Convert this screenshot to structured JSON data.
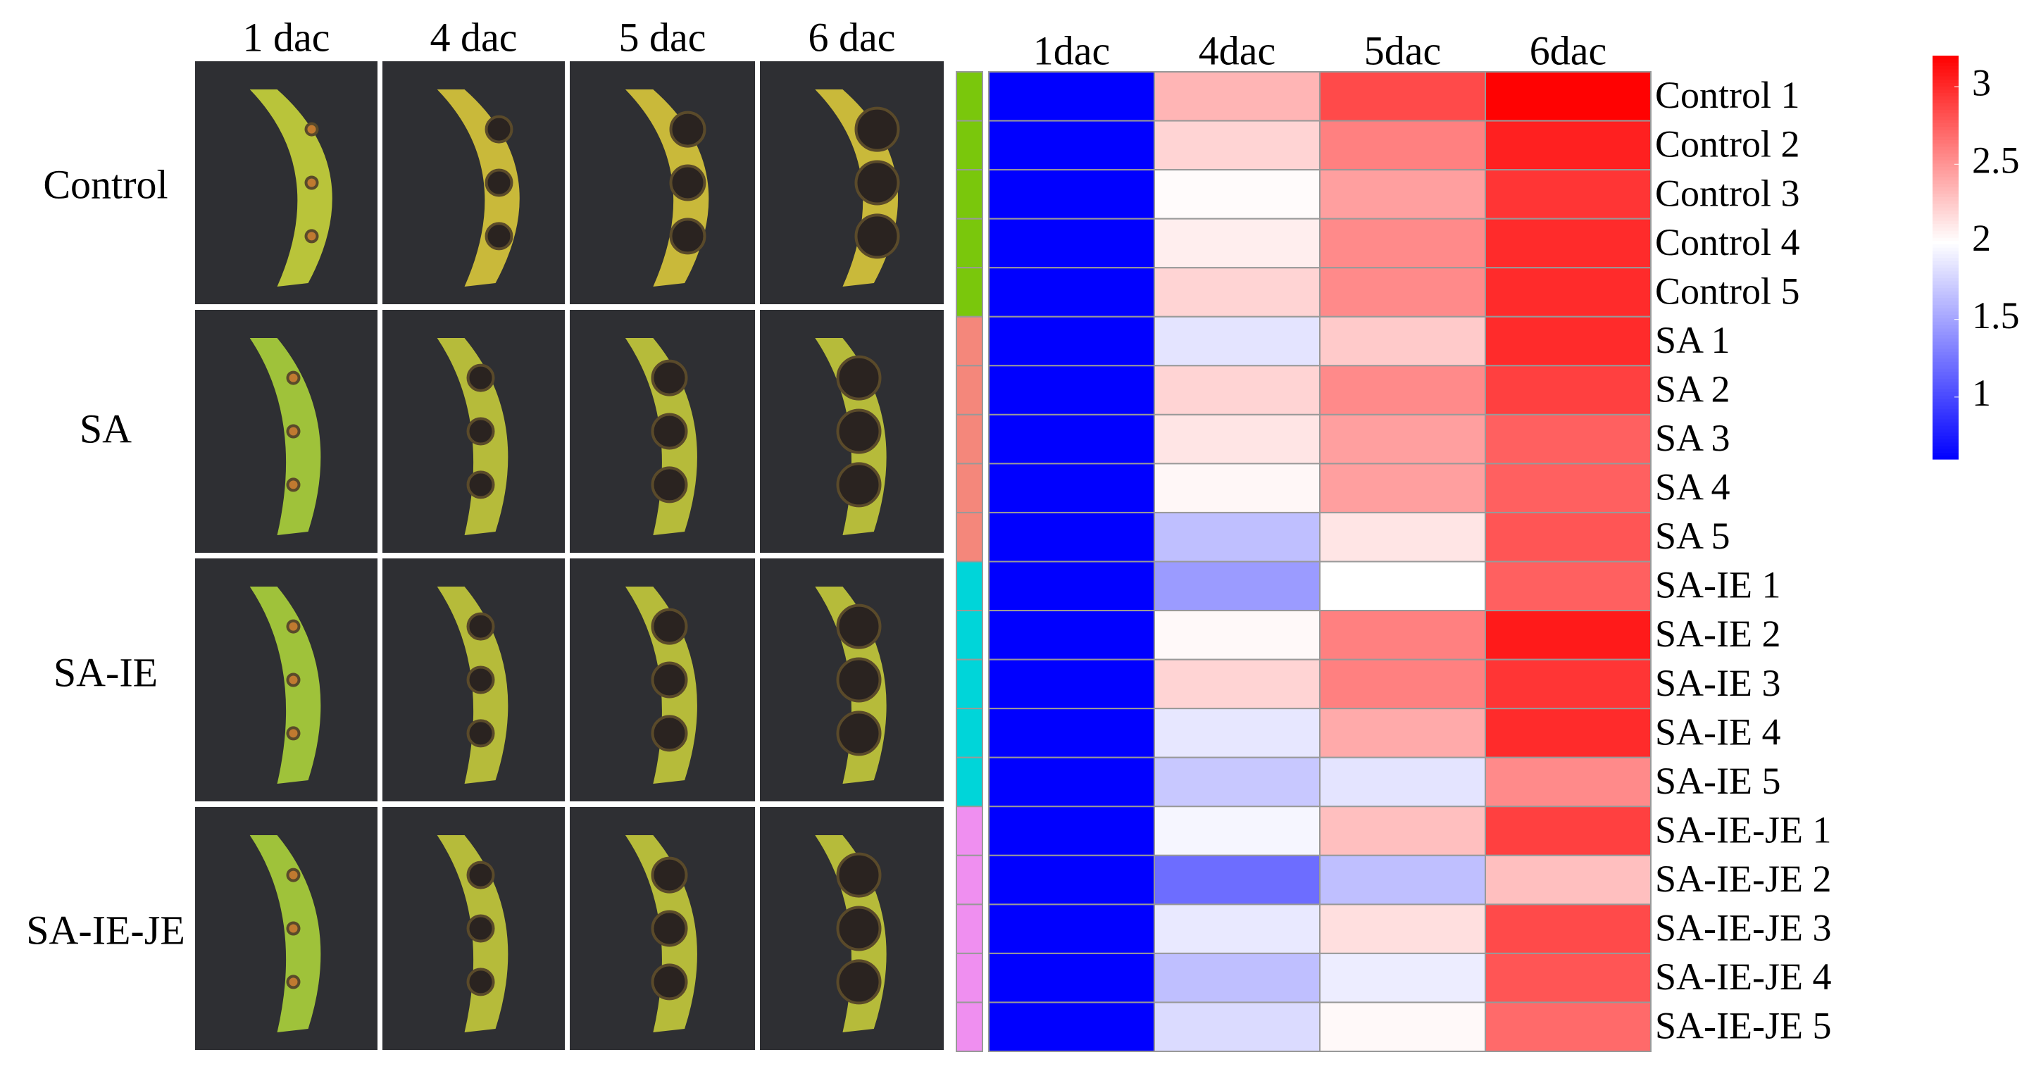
{
  "photo_panel": {
    "columns": [
      "1 dac",
      "4 dac",
      "5 dac",
      "6 dac"
    ],
    "rows": [
      "Control",
      "SA",
      "SA-IE",
      "SA-IE-JE"
    ]
  },
  "chart_data": {
    "type": "heatmap",
    "x": [
      "1dac",
      "4dac",
      "5dac",
      "6dac"
    ],
    "y": [
      "Control 1",
      "Control 2",
      "Control 3",
      "Control 4",
      "Control 5",
      "SA 1",
      "SA 2",
      "SA 3",
      "SA 4",
      "SA 5",
      "SA-IE 1",
      "SA-IE 2",
      "SA-IE 3",
      "SA-IE 4",
      "SA-IE 5",
      "SA-IE-JE 1",
      "SA-IE-JE 2",
      "SA-IE-JE 3",
      "SA-IE-JE 4",
      "SA-IE-JE 5"
    ],
    "values": [
      [
        0.6,
        2.35,
        2.85,
        3.19
      ],
      [
        0.6,
        2.2,
        2.6,
        3.05
      ],
      [
        0.6,
        2.02,
        2.45,
        2.95
      ],
      [
        0.6,
        2.08,
        2.55,
        3.0
      ],
      [
        0.6,
        2.2,
        2.55,
        3.0
      ],
      [
        0.6,
        1.85,
        2.25,
        3.0
      ],
      [
        0.6,
        2.2,
        2.55,
        2.9
      ],
      [
        0.6,
        2.12,
        2.45,
        2.75
      ],
      [
        0.6,
        2.04,
        2.45,
        2.75
      ],
      [
        0.6,
        1.65,
        2.12,
        2.8
      ],
      [
        0.6,
        1.45,
        2.0,
        2.75
      ],
      [
        0.6,
        2.03,
        2.6,
        3.08
      ],
      [
        0.6,
        2.2,
        2.6,
        2.95
      ],
      [
        0.6,
        1.87,
        2.4,
        3.0
      ],
      [
        0.6,
        1.7,
        1.85,
        2.55
      ],
      [
        0.6,
        1.95,
        2.3,
        2.9
      ],
      [
        0.6,
        1.2,
        1.65,
        2.3
      ],
      [
        0.6,
        1.88,
        2.15,
        2.85
      ],
      [
        0.6,
        1.65,
        1.9,
        2.8
      ],
      [
        0.6,
        1.8,
        2.03,
        2.7
      ]
    ],
    "clim": [
      0.6,
      3.2
    ],
    "cticks": [
      1,
      1.5,
      2,
      2.5,
      3
    ],
    "colors": {
      "low": "#0000ff",
      "mid": "#ffffff",
      "high": "#ff0000"
    },
    "mid_value": 2,
    "row_annotation_colors": [
      "#7ac70c",
      "#7ac70c",
      "#7ac70c",
      "#7ac70c",
      "#7ac70c",
      "#f4877b",
      "#f4877b",
      "#f4877b",
      "#f4877b",
      "#f4877b",
      "#00d5d9",
      "#00d5d9",
      "#00d5d9",
      "#00d5d9",
      "#00d5d9",
      "#ef8ff0",
      "#ef8ff0",
      "#ef8ff0",
      "#ef8ff0",
      "#ef8ff0"
    ]
  }
}
